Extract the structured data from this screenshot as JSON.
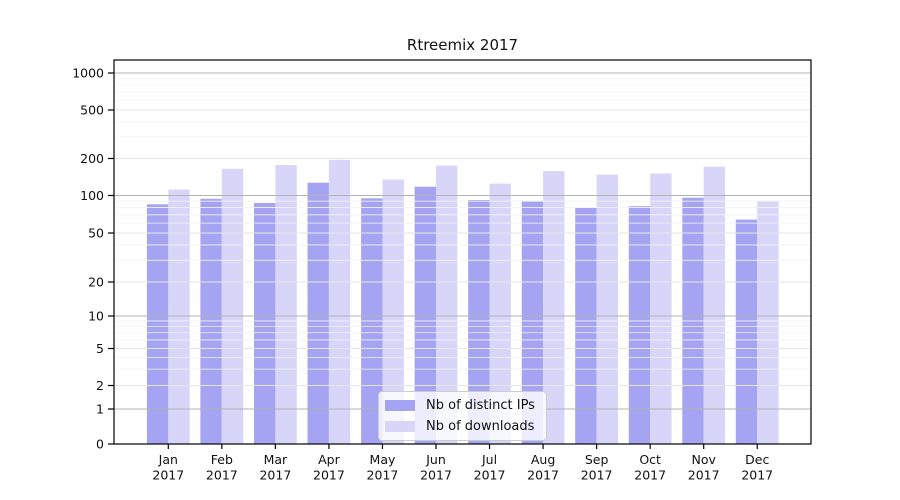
{
  "chart_data": {
    "type": "bar",
    "title": "Rtreemix 2017",
    "categories": [
      "Jan 2017",
      "Feb 2017",
      "Mar 2017",
      "Apr 2017",
      "May 2017",
      "Jun 2017",
      "Jul 2017",
      "Aug 2017",
      "Sep 2017",
      "Oct 2017",
      "Nov 2017",
      "Dec 2017"
    ],
    "series": [
      {
        "name": "Nb of distinct IPs",
        "color": "#a5a4f2",
        "values": [
          85,
          94,
          87,
          127,
          95,
          118,
          92,
          90,
          80,
          82,
          96,
          64
        ]
      },
      {
        "name": "Nb of downloads",
        "color": "#d7d6f9",
        "values": [
          112,
          165,
          177,
          195,
          135,
          175,
          125,
          158,
          148,
          151,
          172,
          91
        ]
      }
    ],
    "yticks": [
      0,
      1,
      2,
      5,
      10,
      20,
      50,
      100,
      200,
      500,
      1000
    ],
    "minor_yticks": [
      3,
      4,
      6,
      7,
      8,
      9,
      30,
      40,
      60,
      70,
      80,
      90,
      300,
      400,
      600,
      700,
      800,
      900
    ],
    "ylim": [
      0,
      1280
    ],
    "yscale": "log-with-zero",
    "xlabel": "",
    "ylabel": "",
    "grid": "on",
    "legend_position": "inside-bottom-center",
    "colors": {
      "grid_decade": "#b3b3b3",
      "grid_labeled": "#e6e6e6",
      "grid_minor": "#f2f2f2",
      "axis": "#000000",
      "text": "#111111"
    }
  }
}
